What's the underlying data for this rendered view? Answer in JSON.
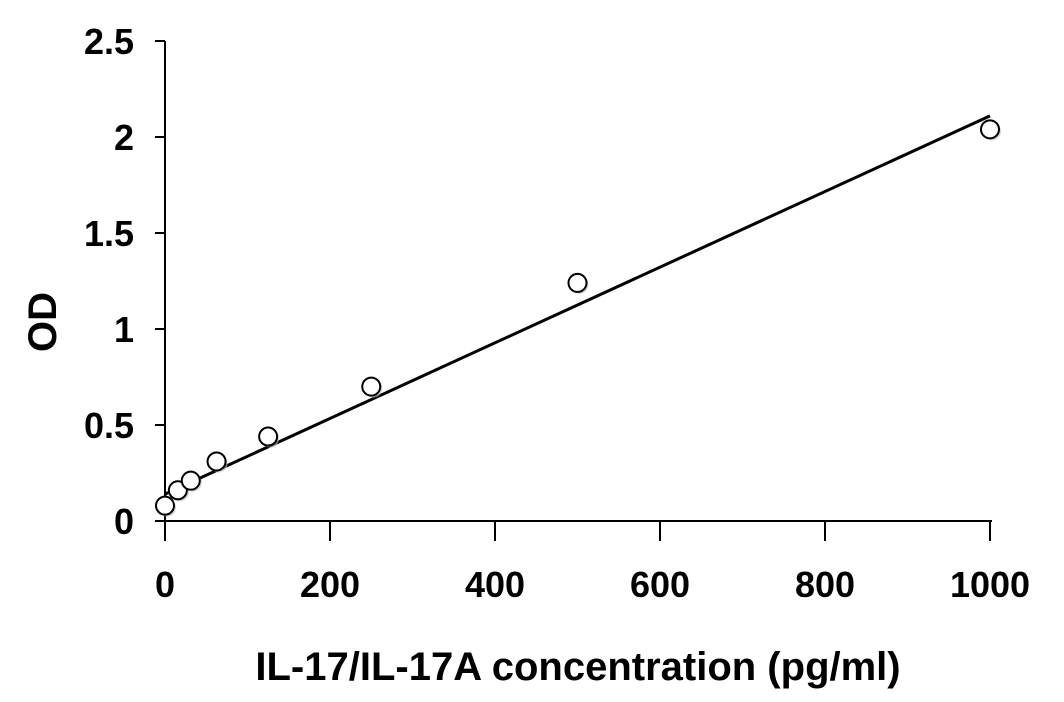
{
  "chart_data": {
    "type": "scatter",
    "title": "",
    "xlabel": "IL-17/IL-17A concentration (pg/ml)",
    "ylabel": "OD",
    "xlim": [
      0,
      1000
    ],
    "ylim": [
      0,
      2.5
    ],
    "x_ticks": [
      "0",
      "200",
      "400",
      "600",
      "800",
      "1000"
    ],
    "y_ticks": [
      "0",
      "0.5",
      "1",
      "1.5",
      "2",
      "2.5"
    ],
    "grid": false,
    "legend": "none",
    "marker": "open-circle",
    "colors": {
      "axis": "#000000",
      "marker_edge": "#000000",
      "marker_fill": "#ffffff",
      "trendline": "#000000"
    },
    "series": [
      {
        "x": [
          0,
          15.6,
          31.25,
          62.5,
          125,
          250,
          500,
          1000
        ],
        "y": [
          0.08,
          0.16,
          0.21,
          0.31,
          0.44,
          0.7,
          1.24,
          2.04
        ]
      }
    ],
    "trendline": {
      "type": "linear",
      "x": [
        0,
        1000
      ],
      "y": [
        0.14,
        2.11
      ]
    }
  }
}
